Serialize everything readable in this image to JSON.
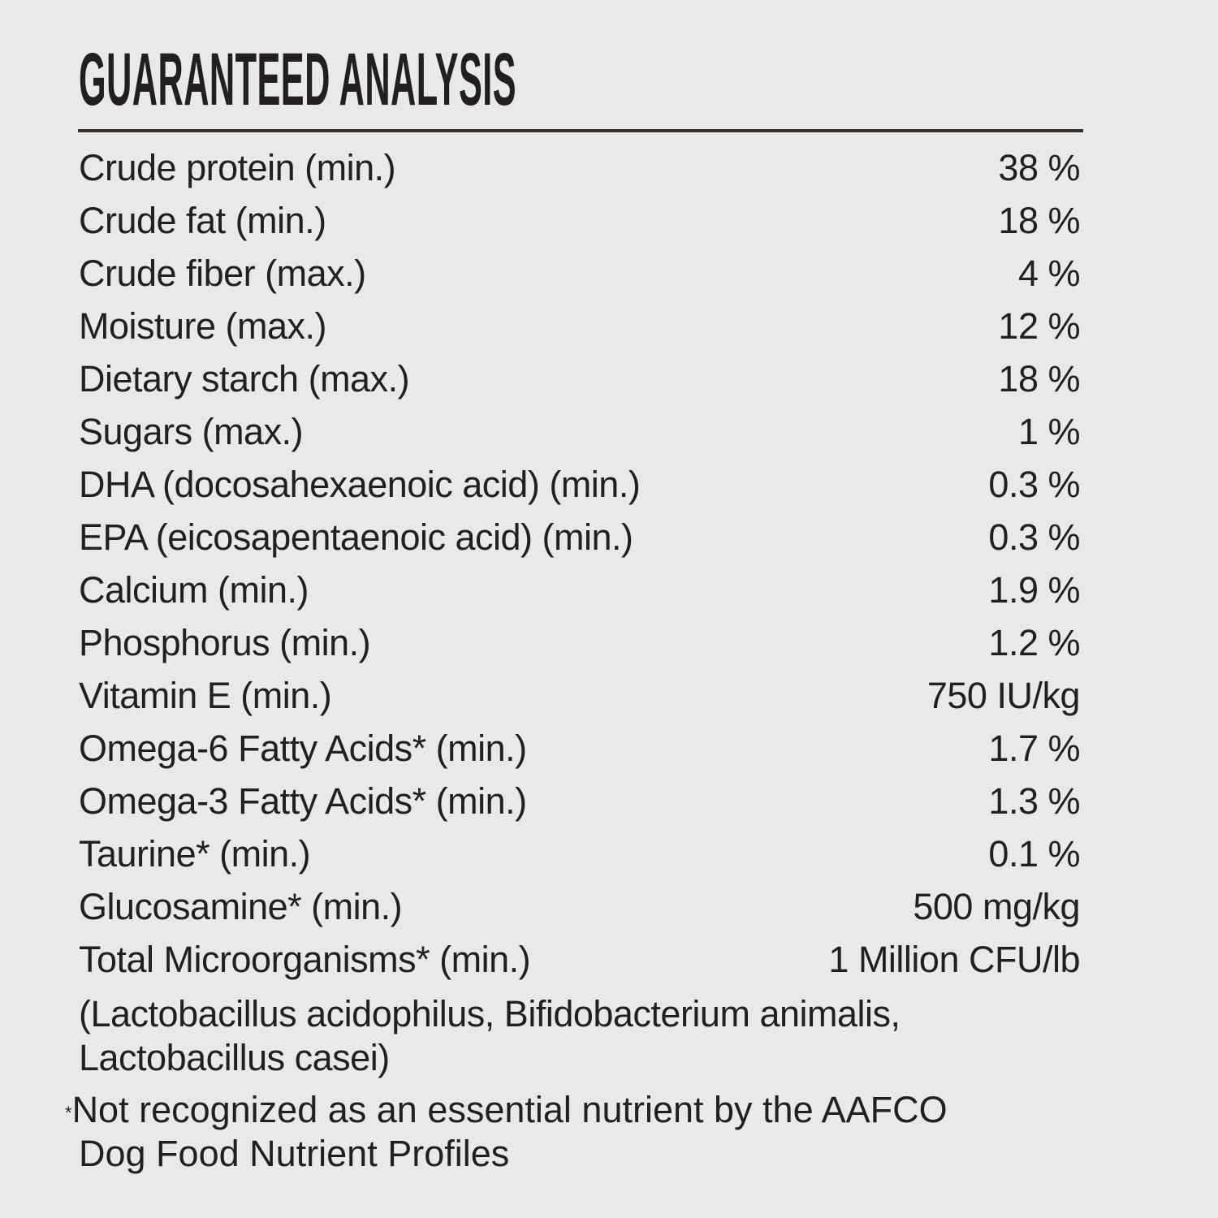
{
  "title": "GUARANTEED ANALYSIS",
  "colors": {
    "background": "#e9e9e9",
    "text": "#231f20",
    "rule": "#3e2d2b"
  },
  "rows": [
    {
      "label": "Crude protein (min.)",
      "value": "38 %"
    },
    {
      "label": "Crude fat (min.)",
      "value": "18 %"
    },
    {
      "label": "Crude fiber (max.)",
      "value": "4 %"
    },
    {
      "label": "Moisture (max.)",
      "value": "12 %"
    },
    {
      "label": "Dietary starch (max.)",
      "value": "18 %"
    },
    {
      "label": "Sugars (max.)",
      "value": "1 %"
    },
    {
      "label": "DHA (docosahexaenoic acid) (min.)",
      "value": "0.3 %"
    },
    {
      "label": "EPA (eicosapentaenoic acid) (min.)",
      "value": "0.3 %"
    },
    {
      "label": "Calcium (min.)",
      "value": "1.9 %"
    },
    {
      "label": "Phosphorus (min.)",
      "value": "1.2 %"
    },
    {
      "label": "Vitamin E (min.)",
      "value": "750 IU/kg"
    },
    {
      "label": "Omega-6 Fatty Acids* (min.)",
      "value": "1.7 %"
    },
    {
      "label": "Omega-3 Fatty Acids* (min.)",
      "value": "1.3 %"
    },
    {
      "label": "Taurine* (min.)",
      "value": "0.1 %"
    },
    {
      "label": "Glucosamine* (min.)",
      "value": "500 mg/kg"
    },
    {
      "label": "Total Microorganisms* (min.)",
      "value": "1 Million CFU/lb"
    }
  ],
  "microorganisms_note": [
    "(Lactobacillus acidophilus, Bifidobacterium animalis,",
    "Lactobacillus casei)"
  ],
  "footnote": {
    "mark": "*",
    "lines": [
      "Not recognized as an essential nutrient by the AAFCO",
      "Dog Food Nutrient Profiles"
    ]
  }
}
